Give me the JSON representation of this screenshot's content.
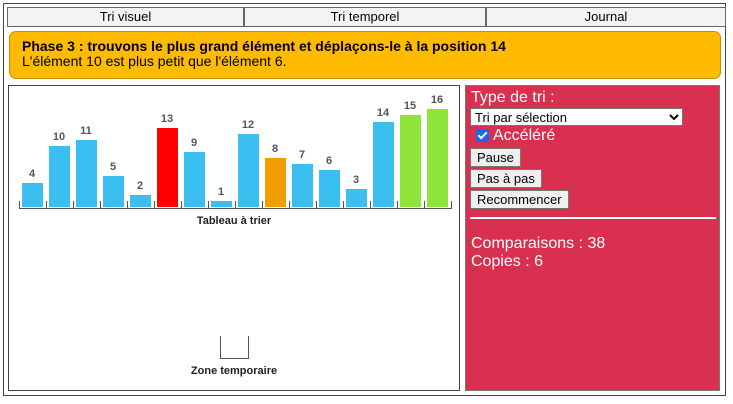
{
  "tabs": [
    {
      "label": "Tri visuel"
    },
    {
      "label": "Tri temporel"
    },
    {
      "label": "Journal"
    }
  ],
  "banner": {
    "title": "Phase 3 : trouvons le plus grand élément et déplaçons-le à la position 14",
    "message": "L'élément 10 est plus petit que l'élément 6."
  },
  "colors": {
    "default": "#3bbff0",
    "compared_max": "#ff0000",
    "compared_current": "#f39c00",
    "sorted": "#8ee43a",
    "banner": "#ffbb00",
    "panel": "#d9304f"
  },
  "array": {
    "caption": "Tableau à trier",
    "values": [
      4,
      10,
      11,
      5,
      2,
      13,
      9,
      1,
      12,
      8,
      7,
      6,
      3,
      14,
      15,
      16
    ],
    "states": [
      "default",
      "default",
      "default",
      "default",
      "default",
      "compared_max",
      "default",
      "default",
      "default",
      "compared_current",
      "default",
      "default",
      "default",
      "default",
      "sorted",
      "sorted"
    ]
  },
  "temp_zone": {
    "caption": "Zone temporaire"
  },
  "controls": {
    "type_label": "Type de tri :",
    "sort_type": "Tri par sélection",
    "accelerated_label": "Accéléré",
    "accelerated": true,
    "pause_label": "Pause",
    "step_label": "Pas à pas",
    "restart_label": "Recommencer"
  },
  "stats": {
    "comparisons": "Comparaisons : 38",
    "copies": "Copies : 6"
  }
}
